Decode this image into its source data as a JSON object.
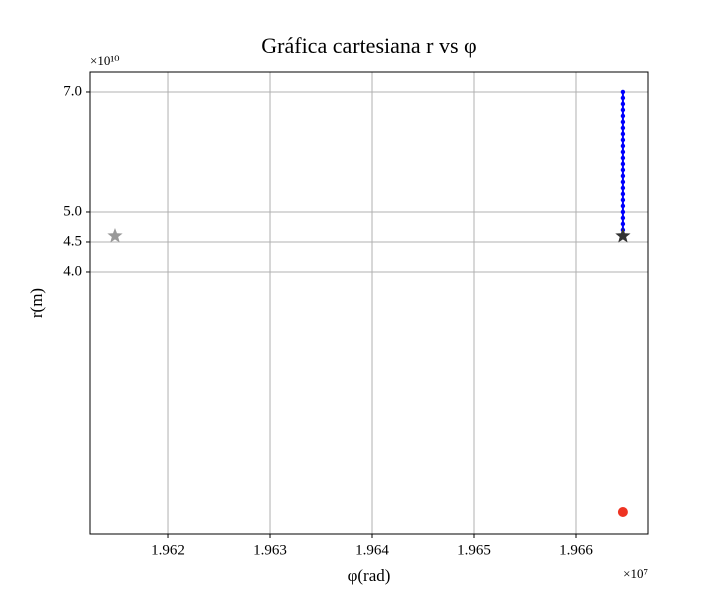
{
  "chart_data": {
    "type": "scatter",
    "title": "Gráfica cartesiana r vs φ",
    "x_label": "φ(rad)",
    "y_label": "r(m)",
    "x_offset_label": "×10⁷",
    "y_offset_label": "×10¹⁰",
    "xlim": [
      1.961235,
      1.966706
    ],
    "ylim": [
      -0.367,
      7.333
    ],
    "xticks": [
      1.962,
      1.963,
      1.964,
      1.965,
      1.966
    ],
    "yticks": [
      {
        "value": 4.0,
        "label": "4.0"
      },
      {
        "value": 4.5,
        "label": "4.5"
      },
      {
        "value": 5.0,
        "label": "5.0"
      },
      {
        "value": 7.0,
        "label": "7.0"
      }
    ],
    "grid": true,
    "series": [
      {
        "color": "#0000ff",
        "marker": "line-dots",
        "x": [
          1.96646,
          1.96646,
          1.96646,
          1.96646,
          1.96646,
          1.96646,
          1.96646,
          1.96646,
          1.96646,
          1.96646,
          1.96646,
          1.96646,
          1.96646,
          1.96646,
          1.96646,
          1.96646,
          1.96646,
          1.96646,
          1.96646,
          1.96646,
          1.96646,
          1.96646,
          1.96646,
          1.96646,
          1.96646
        ],
        "values": [
          4.6,
          4.7,
          4.8,
          4.9,
          5.0,
          5.1,
          5.2,
          5.3,
          5.4,
          5.5,
          5.6,
          5.7,
          5.8,
          5.9,
          6.0,
          6.1,
          6.2,
          6.3,
          6.4,
          6.5,
          6.6,
          6.7,
          6.8,
          6.9,
          7.0
        ]
      },
      {
        "color": "#999999",
        "marker": "star",
        "x": [
          1.96148
        ],
        "values": [
          4.6
        ]
      },
      {
        "color": "#333333",
        "marker": "star",
        "x": [
          1.96646
        ],
        "values": [
          4.6
        ]
      },
      {
        "color": "#ee3322",
        "marker": "circle",
        "x": [
          1.96646
        ],
        "values": [
          0.0
        ]
      }
    ]
  }
}
